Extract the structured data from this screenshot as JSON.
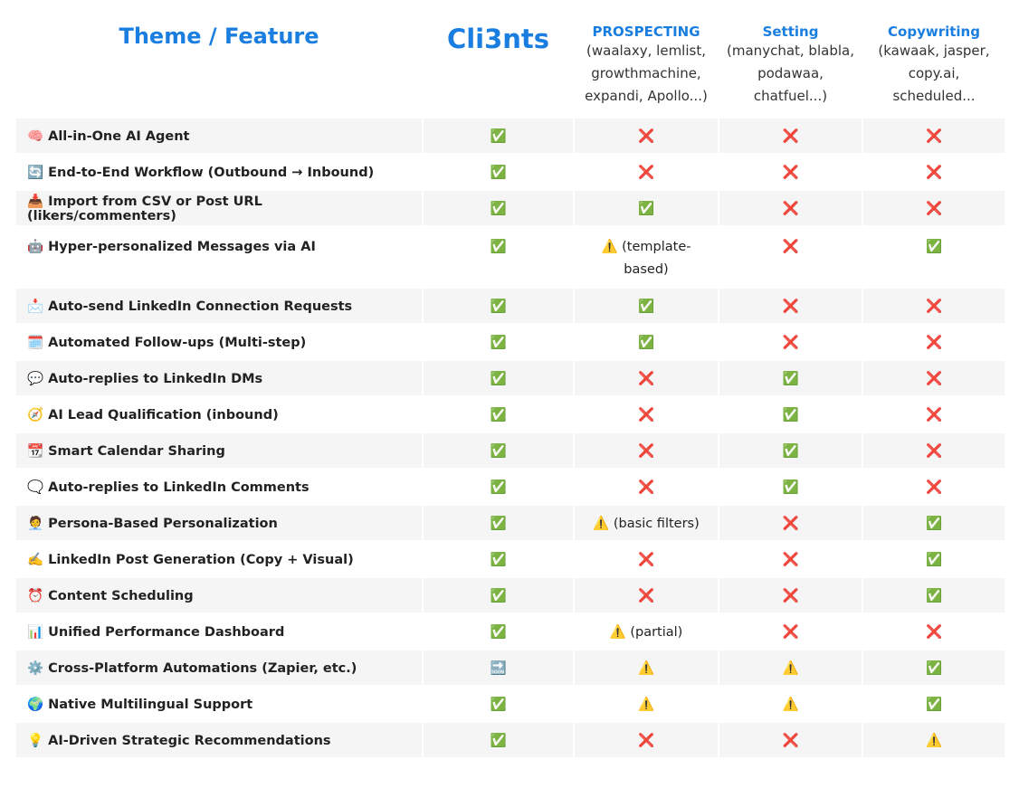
{
  "table": {
    "header": [
      {
        "title": "Theme / Feature"
      },
      {
        "title": "Cli3nts"
      },
      {
        "title": "PROSPECTING",
        "desc": "(waalaxy, lemlist, growthmachine, expandi, Apollo...)"
      },
      {
        "title": "Setting",
        "desc": "(manychat, blabla, podawaa, chatfuel...)"
      },
      {
        "title": "Copywriting",
        "desc": "(kawaak, jasper, copy.ai, scheduled..."
      }
    ],
    "rows": [
      [
        "🧠 All-in-One AI Agent",
        "✅",
        "❌",
        "❌",
        "❌"
      ],
      [
        "🔄 End-to-End Workflow (Outbound → Inbound)",
        "✅",
        "❌",
        "❌",
        "❌"
      ],
      [
        "📥 Import from CSV or Post URL (likers/commenters)",
        "✅",
        "✅",
        "❌",
        "❌"
      ],
      [
        "🤖 Hyper-personalized Messages via AI",
        "✅",
        "⚠️ (template-based)",
        "❌",
        "✅"
      ],
      [
        "📩 Auto-send LinkedIn Connection Requests",
        "✅",
        "✅",
        "❌",
        "❌"
      ],
      [
        "🗓️ Automated Follow-ups (Multi-step)",
        "✅",
        "✅",
        "❌",
        "❌"
      ],
      [
        "💬 Auto-replies to LinkedIn DMs",
        "✅",
        "❌",
        "✅",
        "❌"
      ],
      [
        "🧭 AI Lead Qualification (inbound)",
        "✅",
        "❌",
        "✅",
        "❌"
      ],
      [
        "📆 Smart Calendar Sharing",
        "✅",
        "❌",
        "✅",
        "❌"
      ],
      [
        "🗨️ Auto-replies to LinkedIn Comments",
        "✅",
        "❌",
        "✅",
        "❌"
      ],
      [
        "🧑‍💼 Persona-Based Personalization",
        "✅",
        "⚠️ (basic filters)",
        "❌",
        "✅"
      ],
      [
        "✍️ LinkedIn Post Generation (Copy + Visual)",
        "✅",
        "❌",
        "❌",
        "✅"
      ],
      [
        "⏰ Content Scheduling",
        "✅",
        "❌",
        "❌",
        "✅"
      ],
      [
        "📊 Unified Performance Dashboard",
        "✅",
        "⚠️ (partial)",
        "❌",
        "❌"
      ],
      [
        "⚙️ Cross-Platform Automations (Zapier, etc.)",
        "🔜",
        "⚠️",
        "⚠️",
        "✅"
      ],
      [
        "🌍 Native Multilingual Support",
        "✅",
        "⚠️",
        "⚠️",
        "✅"
      ],
      [
        "💡 AI-Driven Strategic Recommendations",
        "✅",
        "❌",
        "❌",
        "⚠️"
      ]
    ]
  }
}
